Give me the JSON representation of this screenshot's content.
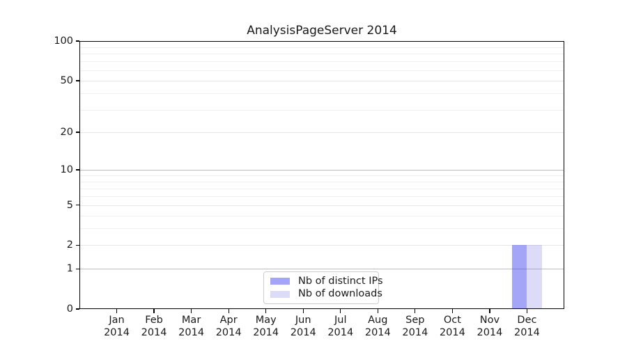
{
  "figure": {
    "background": "#ffffff"
  },
  "chart_data": {
    "type": "bar",
    "title": "AnalysisPageServer 2014",
    "categories": [
      "Jan 2014",
      "Feb 2014",
      "Mar 2014",
      "Apr 2014",
      "May 2014",
      "Jun 2014",
      "Jul 2014",
      "Aug 2014",
      "Sep 2014",
      "Oct 2014",
      "Nov 2014",
      "Dec 2014"
    ],
    "series": [
      {
        "name": "Nb of distinct IPs",
        "color": "rgba(55,55,238,0.45)",
        "values": [
          0,
          0,
          0,
          0,
          0,
          0,
          0,
          0,
          0,
          0,
          0,
          2
        ]
      },
      {
        "name": "Nb of downloads",
        "color": "rgba(115,115,231,0.25)",
        "values": [
          0,
          0,
          0,
          0,
          0,
          0,
          0,
          0,
          0,
          0,
          0,
          2
        ]
      }
    ],
    "xlabel": "",
    "ylabel": "",
    "yscale": "log1p",
    "ylim": [
      0,
      100
    ],
    "yticks": [
      0,
      1,
      2,
      5,
      10,
      20,
      50,
      100
    ],
    "yticks_minor": [
      3,
      4,
      6,
      7,
      8,
      9,
      30,
      40,
      60,
      70,
      80,
      90
    ],
    "grid": "horizontal-only",
    "legend_position": "lower-center",
    "colors": {
      "grid_decade": "#bbbbbb",
      "grid_major": "#e6e6e6",
      "grid_minor": "#f0f0f0",
      "axis": "#000000",
      "text": "#191919",
      "legend_border": "#cccccc",
      "legend_background": "#ffffff"
    }
  }
}
